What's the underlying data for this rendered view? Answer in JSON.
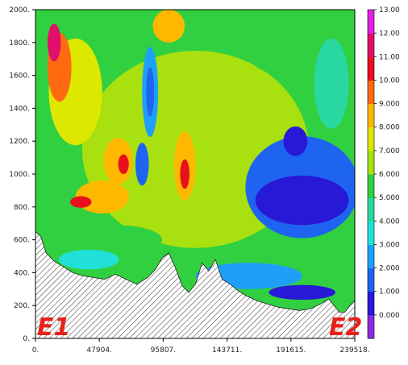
{
  "chart_data": {
    "type": "contour",
    "title": "",
    "xlabel": "",
    "ylabel": "",
    "xlim": [
      0,
      239518
    ],
    "ylim": [
      0,
      2000
    ],
    "x_ticks": [
      {
        "value": 0,
        "label": "0."
      },
      {
        "value": 47904,
        "label": "47904."
      },
      {
        "value": 95807,
        "label": "95807."
      },
      {
        "value": 143711,
        "label": "143711."
      },
      {
        "value": 191615,
        "label": "191615."
      },
      {
        "value": 239518,
        "label": "239518."
      }
    ],
    "y_ticks": [
      {
        "value": 0,
        "label": "0."
      },
      {
        "value": 200,
        "label": "200."
      },
      {
        "value": 400,
        "label": "400."
      },
      {
        "value": 600,
        "label": "600."
      },
      {
        "value": 800,
        "label": "800."
      },
      {
        "value": 1000,
        "label": "1000."
      },
      {
        "value": 1200,
        "label": "1200."
      },
      {
        "value": 1400,
        "label": "1400."
      },
      {
        "value": 1600,
        "label": "1600."
      },
      {
        "value": 1800,
        "label": "1800."
      },
      {
        "value": 2000,
        "label": "2000."
      }
    ],
    "colorbar": {
      "levels": [
        0,
        1,
        2,
        3,
        4,
        5,
        6,
        7,
        8,
        9,
        10,
        11,
        12,
        13
      ],
      "labels": [
        "0.000",
        "1.000",
        "2.000",
        "3.000",
        "4.000",
        "5.000",
        "6.000",
        "7.000",
        "8.000",
        "9.000",
        "10.00",
        "11.00",
        "12.00",
        "13.00"
      ],
      "colors": [
        "#8a2be2",
        "#2818d8",
        "#1e64f0",
        "#1ea0f8",
        "#20e0d8",
        "#28d8a0",
        "#30d040",
        "#a8e010",
        "#dde800",
        "#ffb800",
        "#ff6a10",
        "#e8101c",
        "#e0106a",
        "#e020e0"
      ]
    },
    "terrain": {
      "hatched": true,
      "profile": [
        [
          0,
          650
        ],
        [
          4000,
          620
        ],
        [
          8000,
          520
        ],
        [
          14000,
          470
        ],
        [
          20000,
          440
        ],
        [
          28000,
          400
        ],
        [
          36000,
          380
        ],
        [
          44000,
          370
        ],
        [
          52000,
          360
        ],
        [
          60000,
          390
        ],
        [
          68000,
          360
        ],
        [
          76000,
          330
        ],
        [
          84000,
          370
        ],
        [
          90000,
          420
        ],
        [
          95000,
          490
        ],
        [
          100000,
          520
        ],
        [
          105000,
          430
        ],
        [
          110000,
          320
        ],
        [
          115000,
          280
        ],
        [
          120000,
          330
        ],
        [
          125000,
          460
        ],
        [
          130000,
          410
        ],
        [
          135000,
          480
        ],
        [
          140000,
          360
        ],
        [
          146000,
          330
        ],
        [
          152000,
          290
        ],
        [
          158000,
          260
        ],
        [
          166000,
          230
        ],
        [
          174000,
          210
        ],
        [
          182000,
          190
        ],
        [
          190000,
          180
        ],
        [
          198000,
          170
        ],
        [
          206000,
          180
        ],
        [
          214000,
          210
        ],
        [
          220000,
          240
        ],
        [
          224000,
          200
        ],
        [
          228000,
          160
        ],
        [
          232000,
          160
        ],
        [
          236000,
          200
        ],
        [
          239518,
          230
        ]
      ]
    },
    "blobs": [
      {
        "cx": 120000,
        "cy": 1150,
        "rx": 170000,
        "ry": 1200,
        "level": 7
      },
      {
        "cx": 30000,
        "cy": 1500,
        "rx": 40000,
        "ry": 650,
        "level": 8
      },
      {
        "cx": 18000,
        "cy": 1650,
        "rx": 18000,
        "ry": 420,
        "level": 10
      },
      {
        "cx": 14000,
        "cy": 1800,
        "rx": 10000,
        "ry": 230,
        "level": 12
      },
      {
        "cx": 50000,
        "cy": 860,
        "rx": 40000,
        "ry": 200,
        "level": 9
      },
      {
        "cx": 34000,
        "cy": 830,
        "rx": 16000,
        "ry": 70,
        "level": 11
      },
      {
        "cx": 62000,
        "cy": 1080,
        "rx": 22000,
        "ry": 280,
        "level": 9
      },
      {
        "cx": 66000,
        "cy": 1060,
        "rx": 8000,
        "ry": 120,
        "level": 11
      },
      {
        "cx": 86000,
        "cy": 1500,
        "rx": 12000,
        "ry": 550,
        "level": 3
      },
      {
        "cx": 86000,
        "cy": 1500,
        "rx": 6000,
        "ry": 300,
        "level": 2
      },
      {
        "cx": 80000,
        "cy": 1060,
        "rx": 10000,
        "ry": 260,
        "level": 2
      },
      {
        "cx": 112000,
        "cy": 1050,
        "rx": 16000,
        "ry": 420,
        "level": 9
      },
      {
        "cx": 112000,
        "cy": 1000,
        "rx": 7000,
        "ry": 180,
        "level": 11
      },
      {
        "cx": 100000,
        "cy": 1900,
        "rx": 24000,
        "ry": 200,
        "level": 9
      },
      {
        "cx": 200000,
        "cy": 920,
        "rx": 85000,
        "ry": 620,
        "level": 2
      },
      {
        "cx": 200000,
        "cy": 840,
        "rx": 70000,
        "ry": 300,
        "level": 1
      },
      {
        "cx": 195000,
        "cy": 1200,
        "rx": 18000,
        "ry": 180,
        "level": 1
      },
      {
        "cx": 222000,
        "cy": 1550,
        "rx": 26000,
        "ry": 550,
        "level": 5
      },
      {
        "cx": 175000,
        "cy": 1750,
        "rx": 30000,
        "ry": 250,
        "level": 6
      },
      {
        "cx": 60000,
        "cy": 600,
        "rx": 70000,
        "ry": 180,
        "level": 6
      },
      {
        "cx": 40000,
        "cy": 480,
        "rx": 45000,
        "ry": 120,
        "level": 4
      },
      {
        "cx": 160000,
        "cy": 380,
        "rx": 80000,
        "ry": 160,
        "level": 3
      },
      {
        "cx": 200000,
        "cy": 280,
        "rx": 50000,
        "ry": 90,
        "level": 1
      }
    ]
  },
  "annotations": {
    "left_label": "E1",
    "right_label": "E2"
  }
}
